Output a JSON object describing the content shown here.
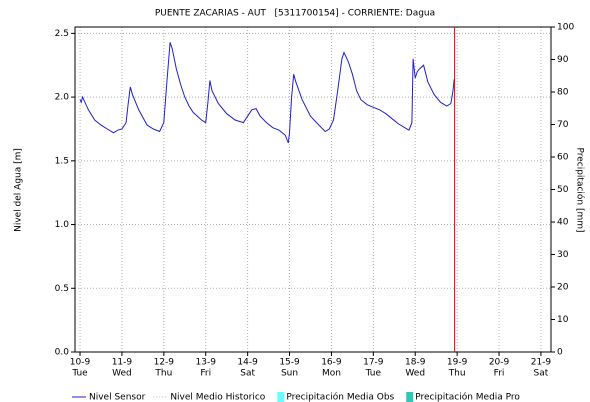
{
  "chart_data": {
    "type": "line",
    "title": "PUENTE ZACARIAS - AUT   [5311700154] - CORRIENTE: Dagua",
    "ylabel": "Nivel del Agua [m]",
    "y2label": "Precipitación [mm]",
    "xlim": [
      9.88,
      21.24
    ],
    "xticks": [
      {
        "value": 10,
        "label": "10-9"
      },
      {
        "value": 11,
        "label": "11-9"
      },
      {
        "value": 12,
        "label": "12-9"
      },
      {
        "value": 13,
        "label": "13-9"
      },
      {
        "value": 14,
        "label": "14-9"
      },
      {
        "value": 15,
        "label": "15-9"
      },
      {
        "value": 16,
        "label": "16-9"
      },
      {
        "value": 17,
        "label": "17-9"
      },
      {
        "value": 18,
        "label": "18-9"
      },
      {
        "value": 19,
        "label": "19-9"
      },
      {
        "value": 20,
        "label": "20-9"
      },
      {
        "value": 21,
        "label": "21-9"
      }
    ],
    "xtick_days": [
      "Tue",
      "Wed",
      "Thu",
      "Fri",
      "Sat",
      "Sun",
      "Mon",
      "Tue",
      "Wed",
      "Thu",
      "Fri",
      "Sat"
    ],
    "ylim": [
      0,
      2.55
    ],
    "yticks": [
      {
        "value": 0,
        "label": "0.0"
      },
      0.5,
      {
        "value": 1,
        "label": "1.0"
      },
      1.5,
      {
        "value": 2,
        "label": "2.0"
      },
      2.5
    ],
    "y2lim": [
      0,
      100
    ],
    "y2ticks": [
      0,
      10,
      20,
      30,
      40,
      50,
      60,
      70,
      80,
      90,
      100
    ],
    "grid": true,
    "current_time_x": 18.94,
    "current_time_color": "#e00000",
    "x": [
      10.0,
      10.03,
      10.06,
      10.2,
      10.35,
      10.5,
      10.65,
      10.8,
      10.9,
      11.0,
      11.1,
      11.15,
      11.2,
      11.25,
      11.4,
      11.6,
      11.75,
      11.9,
      12.0,
      12.08,
      12.15,
      12.2,
      12.3,
      12.4,
      12.5,
      12.6,
      12.7,
      12.8,
      12.9,
      13.0,
      13.05,
      13.1,
      13.15,
      13.3,
      13.5,
      13.7,
      13.9,
      14.0,
      14.1,
      14.2,
      14.3,
      14.45,
      14.6,
      14.75,
      14.9,
      14.97,
      15.0,
      15.05,
      15.1,
      15.15,
      15.3,
      15.5,
      15.7,
      15.85,
      15.95,
      16.05,
      16.15,
      16.25,
      16.3,
      16.4,
      16.5,
      16.6,
      16.7,
      16.85,
      17.0,
      17.15,
      17.3,
      17.45,
      17.6,
      17.75,
      17.85,
      17.92,
      17.95,
      18.0,
      18.05,
      18.1,
      18.2,
      18.3,
      18.45,
      18.6,
      18.75,
      18.85,
      18.9,
      18.93
    ],
    "series": [
      {
        "name": "Nivel Sensor",
        "color": "#1f1fd0",
        "values": [
          1.98,
          1.96,
          2.0,
          1.9,
          1.82,
          1.78,
          1.75,
          1.72,
          1.74,
          1.75,
          1.8,
          1.95,
          2.08,
          2.02,
          1.9,
          1.78,
          1.75,
          1.73,
          1.8,
          2.15,
          2.43,
          2.38,
          2.22,
          2.1,
          2.0,
          1.93,
          1.88,
          1.85,
          1.82,
          1.8,
          1.95,
          2.13,
          2.05,
          1.95,
          1.87,
          1.82,
          1.8,
          1.85,
          1.9,
          1.91,
          1.85,
          1.8,
          1.76,
          1.74,
          1.7,
          1.64,
          1.72,
          2.0,
          2.18,
          2.12,
          1.98,
          1.85,
          1.78,
          1.73,
          1.75,
          1.82,
          2.05,
          2.3,
          2.35,
          2.28,
          2.18,
          2.05,
          1.98,
          1.94,
          1.92,
          1.9,
          1.87,
          1.83,
          1.79,
          1.76,
          1.74,
          1.8,
          2.3,
          2.15,
          2.2,
          2.22,
          2.25,
          2.12,
          2.02,
          1.96,
          1.93,
          1.95,
          2.05,
          2.14
        ]
      }
    ],
    "other_legend": [
      {
        "name": "Nivel Medio Historico",
        "color": "#b0b0b0",
        "style": "dotted"
      },
      {
        "name": "Precipitación Media Obs",
        "color": "#66ffff",
        "style": "box"
      },
      {
        "name": "Precipitación Media Pro",
        "color": "#33c5b5",
        "style": "box"
      }
    ]
  }
}
